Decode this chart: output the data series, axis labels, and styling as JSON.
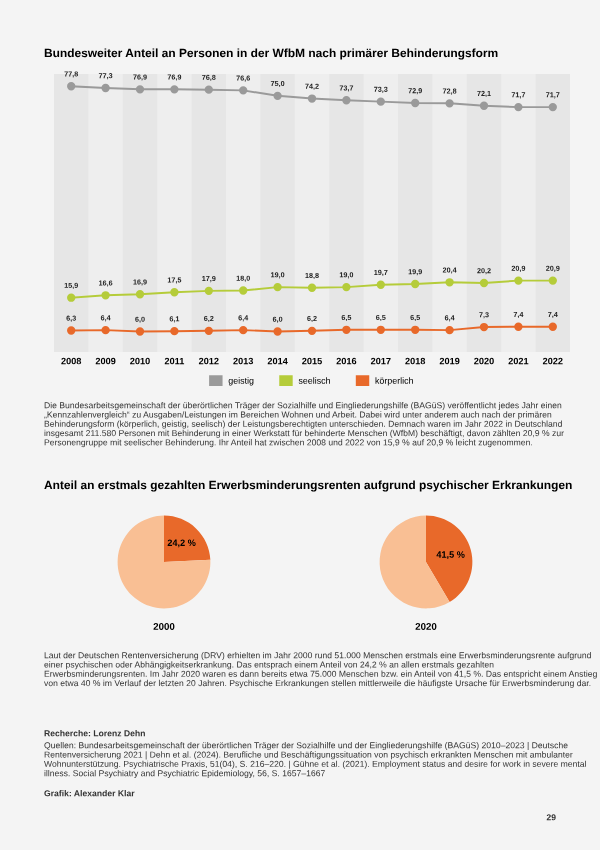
{
  "chart_data": [
    {
      "type": "line",
      "title": "Bundesweiter Anteil an Personen in der WfbM nach primärer Behinderungsform",
      "categories": [
        "2008",
        "2009",
        "2010",
        "2011",
        "2012",
        "2013",
        "2014",
        "2015",
        "2016",
        "2017",
        "2018",
        "2019",
        "2020",
        "2021",
        "2022"
      ],
      "series": [
        {
          "name": "geistig",
          "color": "#9a9a9a",
          "values": [
            77.8,
            77.3,
            76.9,
            76.9,
            76.8,
            76.6,
            75.0,
            74.2,
            73.7,
            73.3,
            72.9,
            72.8,
            72.1,
            71.7,
            71.7
          ],
          "value_labels": [
            "77,8",
            "77,3",
            "76,9",
            "76,9",
            "76,8",
            "76,6",
            "75,0",
            "74,2",
            "73,7",
            "73,3",
            "72,9",
            "72,8",
            "72,1",
            "71,7",
            "71,7"
          ]
        },
        {
          "name": "seelisch",
          "color": "#b5cc3a",
          "values": [
            15.9,
            16.6,
            16.9,
            17.5,
            17.9,
            18.0,
            19.0,
            18.8,
            19.0,
            19.7,
            19.9,
            20.4,
            20.2,
            20.9,
            20.9
          ],
          "value_labels": [
            "15,9",
            "16,6",
            "16,9",
            "17,5",
            "17,9",
            "18,0",
            "19,0",
            "18,8",
            "19,0",
            "19,7",
            "19,9",
            "20,4",
            "20,2",
            "20,9",
            "20,9"
          ]
        },
        {
          "name": "körperlich",
          "color": "#e8692a",
          "values": [
            6.3,
            6.4,
            6.0,
            6.1,
            6.2,
            6.4,
            6.0,
            6.2,
            6.5,
            6.5,
            6.5,
            6.4,
            7.3,
            7.4,
            7.4
          ],
          "value_labels": [
            "6,3",
            "6,4",
            "6,0",
            "6,1",
            "6,2",
            "6,4",
            "6,0",
            "6,2",
            "6,5",
            "6,5",
            "6,5",
            "6,4",
            "7,3",
            "7,4",
            "7,4"
          ]
        }
      ],
      "tick_labels": "x",
      "marker": "circle",
      "legend": "bottom",
      "grid": false,
      "annotations": [
        "Die Bundesarbeitsgemeinschaft der überörtlichen Träger der Sozialhilfe und Eingliederungshilfe (BAGüS) veröffentlicht jedes Jahr einen „Kennzahlenvergleich“ zu Ausgaben/Leistungen im Bereichen Wohnen und Arbeit. Dabei wird unter anderem auch nach der primären Behinderungsform (körperlich, geistig, seelisch) der Leistungsberechtigten unterschieden. Demnach waren im Jahr 2022 in Deutschland insgesamt 211.580 Personen mit Behinderung in einer Werkstatt für behinderte Menschen (WfbM) beschäftigt, davon zählten 20,9 % zur Personengruppe mit seelischer Behinderung. Ihr Anteil hat zwischen 2008 und 2022 von 15,9 % auf 20,9 % leicht zugenommen."
      ]
    },
    {
      "type": "pie",
      "title": "Anteil an erstmals gezahlten Erwerbsminderungsrenten aufgrund psychischer Erkrankungen",
      "xlabel": "2000",
      "categories": [
        null,
        null
      ],
      "values": [
        24.2,
        75.8
      ],
      "colors": [
        "#e8692a",
        "#f9bf94"
      ],
      "value_labels": [
        "24,2 %",
        null
      ]
    },
    {
      "type": "pie",
      "xlabel": "2020",
      "categories": [
        null,
        null
      ],
      "values": [
        41.5,
        58.5
      ],
      "colors": [
        "#e8692a",
        "#f9bf94"
      ],
      "value_labels": [
        "41,5 %",
        null
      ],
      "annotations": [
        "Laut der Deutschen Rentenversicherung (DRV) erhielten im Jahr 2000 rund 51.000 Menschen erstmals eine Erwerbsminderungsrente aufgrund einer psychischen oder Abhängigkeitserkrankung. Das entsprach einem Anteil von 24,2 % an allen erstmals gezahlten Erwerbsminderungsrenten. Im Jahr 2020 waren es dann bereits etwa 75.000 Menschen bzw. ein Anteil von 41,5 %. Das entspricht einem Anstieg von etwa 40 % im Verlauf der letzten 20 Jahren. Psychische Erkrankungen stellen mittlerweile die häufigste Ursache für Erwerbsminderung dar.",
        "Recherche: Lorenz Dehn",
        "Quellen: Bundesarbeitsgemeinschaft der überörtlichen Träger der Sozialhilfe und der Eingliederungshilfe (BAGüS) 2010–2023 | Deutsche Rentenversicherung 2021 | Dehn et al. (2024). Berufliche und Beschäftigungssituation von psychisch erkrankten Menschen mit ambulanter Wohnunterstützung. Psychiatrische Praxis, 51(04), S. 216–220. | Gühne et al. (2021). Employment status and desire for work in severe mental illness. Social Psychiatry and Psychiatric Epidemiology, 56, S. 1657–1667",
        "Grafik: Alexander Klar",
        "29"
      ]
    }
  ]
}
